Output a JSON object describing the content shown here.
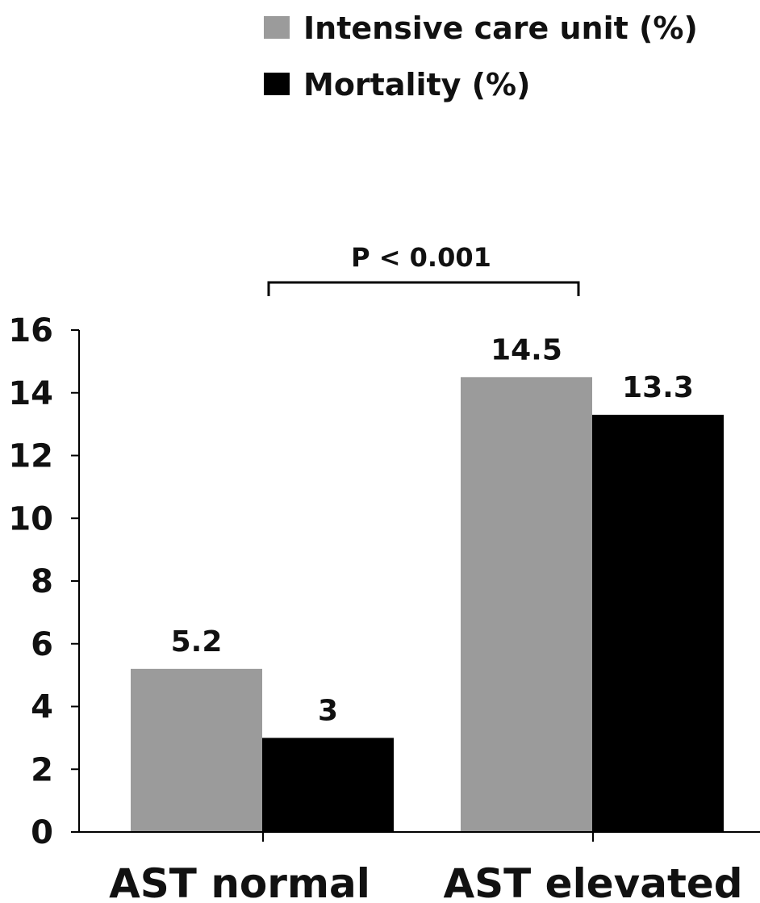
{
  "chart_data": {
    "type": "bar",
    "categories": [
      "AST normal",
      "AST elevated"
    ],
    "series": [
      {
        "name": "Intensive care unit (%)",
        "values": [
          5.2,
          14.5
        ],
        "color": "#9b9b9b"
      },
      {
        "name": "Mortality (%)",
        "values": [
          3,
          13.3
        ],
        "color": "#000000"
      }
    ],
    "value_labels": [
      [
        "5.2",
        "14.5"
      ],
      [
        "3",
        "13.3"
      ]
    ],
    "ylim": [
      0,
      16
    ],
    "yticks": [
      0,
      2,
      4,
      6,
      8,
      10,
      12,
      14,
      16
    ],
    "legend_position": "top-right",
    "grid": false,
    "annotation": {
      "text": "P < 0.001",
      "from_category": "AST normal",
      "to_category": "AST elevated"
    }
  }
}
